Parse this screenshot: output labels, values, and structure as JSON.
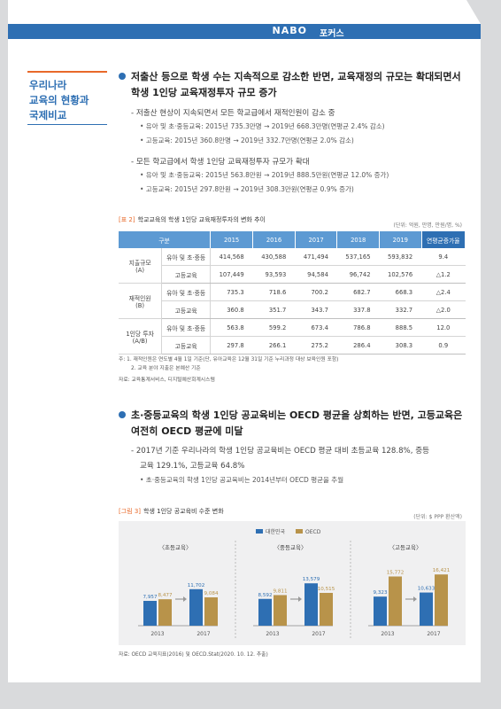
{
  "header": {
    "logo": "NABO",
    "section": "포커스"
  },
  "sidebar": {
    "title_lines": [
      "우리나라",
      "교육의 현황과",
      "국제비교"
    ]
  },
  "section1": {
    "heading_lines": [
      "저출산 등으로 학생 수는 지속적으로 감소한 반면, 교육재정의 규모는 확대되면서",
      "학생 1인당 교육재정투자 규모 증가"
    ],
    "points": [
      {
        "dash": "- 저출산 현상이 지속되면서 모든 학교급에서 재적인원이 감소 중",
        "subs": [
          "• 유아 및 초·중등교육: 2015년 735.3만명 → 2019년 668.3만명(연평균 2.4% 감소)",
          "• 고등교육: 2015년 360.8만명 → 2019년 332.7만명(연평균 2.0% 감소)"
        ]
      },
      {
        "dash": "- 모든 학교급에서 학생 1인당 교육재정투자 규모가 확대",
        "subs": [
          "• 유아 및 초·중등교육: 2015년 563.8만원 → 2019년 888.5만원(연평균 12.0% 증가)",
          "• 고등교육: 2015년 297.8만원 → 2019년 308.3만원(연평균 0.9% 증가)"
        ]
      }
    ]
  },
  "table2": {
    "tag": "[표 2]",
    "title": "학교교육의 학생 1인당 교육재정투자의 변화 추이",
    "unit": "(단위: 억원, 만명, 만원/명, %)",
    "headers": [
      "구분",
      "2015",
      "2016",
      "2017",
      "2018",
      "2019",
      "연평균증가율"
    ],
    "groups": [
      {
        "name1": "지출규모",
        "name2": "(A)",
        "rows": [
          {
            "sub": "유아 및 초·중등",
            "values": [
              "414,568",
              "430,588",
              "471,494",
              "537,165",
              "593,832",
              "9.4"
            ]
          },
          {
            "sub": "고등교육",
            "values": [
              "107,449",
              "93,593",
              "94,584",
              "96,742",
              "102,576",
              "△1.2"
            ]
          }
        ]
      },
      {
        "name1": "재적인원",
        "name2": "(B)",
        "rows": [
          {
            "sub": "유아 및 초·중등",
            "values": [
              "735.3",
              "718.6",
              "700.2",
              "682.7",
              "668.3",
              "△2.4"
            ]
          },
          {
            "sub": "고등교육",
            "values": [
              "360.8",
              "351.7",
              "343.7",
              "337.8",
              "332.7",
              "△2.0"
            ]
          }
        ]
      },
      {
        "name1": "1인당 투자",
        "name2": "(A/B)",
        "rows": [
          {
            "sub": "유아 및 초·중등",
            "values": [
              "563.8",
              "599.2",
              "673.4",
              "786.8",
              "888.5",
              "12.0"
            ]
          },
          {
            "sub": "고등교육",
            "values": [
              "297.8",
              "266.1",
              "275.2",
              "286.4",
              "308.3",
              "0.9"
            ]
          }
        ]
      }
    ],
    "notes": [
      "주: 1. 재적인원은 연도별 4월 1일 기준(단, 유아교육은 12월 31일 기준 누리과정 대상 보육인원 포함)",
      "2. 교육 분야 지출은 본예산 기준"
    ],
    "source": "자료: 교육통계서비스, 디지털예산회계시스템"
  },
  "section2": {
    "heading_lines": [
      "초·중등교육의 학생 1인당 공교육비는 OECD 평균을 상회하는 반면, 고등교육은",
      "여전히 OECD 평균에 미달"
    ],
    "dash_lines": [
      "- 2017년 기준 우리나라의 학생 1인당 공교육비는 OECD 평균 대비 초등교육 128.8%, 중등",
      "교육 129.1%, 고등교육 64.8%"
    ],
    "sub": "• 초·중등교육의 학생 1인당 공교육비는 2014년부터 OECD 평균을 추월"
  },
  "figure3": {
    "tag": "[그림 3]",
    "title": "학생 1인당 공교육비 수준 변화",
    "unit": "(단위: $ PPP 환산액)",
    "source": "자료: OECD 교육지표(2016) 및 OECD.Stat(2020. 10. 12. 추출)"
  },
  "chart_data": {
    "type": "bar",
    "series_names": [
      "대한민국",
      "OECD"
    ],
    "colors": {
      "korea": "#2e6fb3",
      "oecd": "#b8934a",
      "arrow": "#999999"
    },
    "panels": [
      {
        "title": "〈초등교육〉",
        "categories": [
          "2013",
          "2017"
        ],
        "series": [
          {
            "name": "대한민국",
            "values": [
              7957,
              11702
            ]
          },
          {
            "name": "OECD",
            "values": [
              8477,
              9084
            ]
          }
        ],
        "labels": [
          [
            "7,957",
            "11,702"
          ],
          [
            "8,477",
            "9,084"
          ]
        ]
      },
      {
        "title": "〈중등교육〉",
        "categories": [
          "2013",
          "2017"
        ],
        "series": [
          {
            "name": "대한민국",
            "values": [
              8592,
              13579
            ]
          },
          {
            "name": "OECD",
            "values": [
              9811,
              10515
            ]
          }
        ],
        "labels": [
          [
            "8,592",
            "13,579"
          ],
          [
            "9,811",
            "10,515"
          ]
        ]
      },
      {
        "title": "〈고등교육〉",
        "categories": [
          "2013",
          "2017"
        ],
        "series": [
          {
            "name": "대한민국",
            "values": [
              9323,
              10633
            ]
          },
          {
            "name": "OECD",
            "values": [
              15772,
              16421
            ]
          }
        ],
        "labels": [
          [
            "9,323",
            "10,633"
          ],
          [
            "15,772",
            "16,421"
          ]
        ]
      }
    ]
  }
}
